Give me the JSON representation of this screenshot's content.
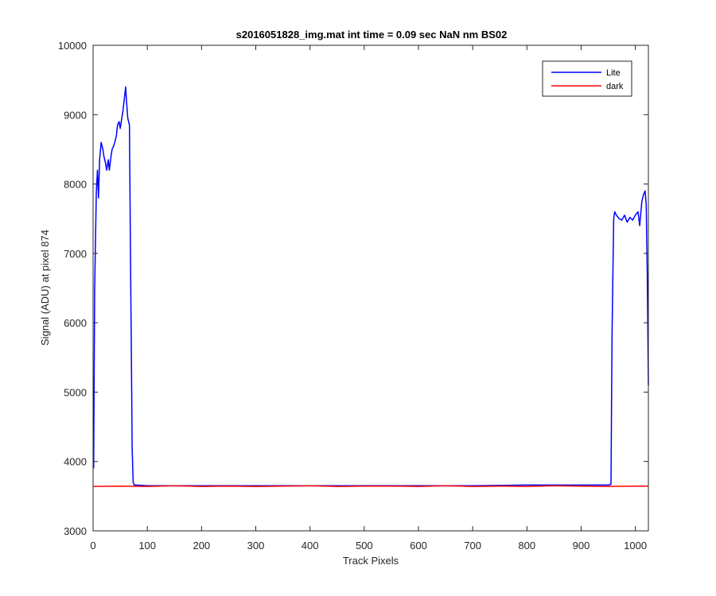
{
  "chart_data": {
    "type": "line",
    "title": "s2016051828_img.mat int time = 0.09 sec  NaN nm BS02",
    "xlabel": "Track Pixels",
    "ylabel": "Signal (ADU) at pixel 874",
    "xlim": [
      0,
      1024
    ],
    "ylim": [
      3000,
      10000
    ],
    "xticks": [
      "0",
      "100",
      "200",
      "300",
      "400",
      "500",
      "600",
      "700",
      "800",
      "900",
      "1000"
    ],
    "yticks": [
      "3000",
      "4000",
      "5000",
      "6000",
      "7000",
      "8000",
      "9000",
      "10000"
    ],
    "grid": false,
    "legend_position": "top-right",
    "series": [
      {
        "name": "Lite",
        "color": "#0000ff",
        "x": [
          1,
          3,
          6,
          8,
          10,
          12,
          15,
          18,
          20,
          23,
          25,
          28,
          30,
          33,
          35,
          38,
          40,
          43,
          45,
          48,
          50,
          53,
          55,
          58,
          60,
          62,
          64,
          67,
          69,
          71,
          72,
          74,
          76,
          80,
          100,
          200,
          300,
          400,
          500,
          600,
          700,
          800,
          900,
          950,
          955,
          957,
          960,
          962,
          965,
          970,
          975,
          980,
          985,
          990,
          995,
          1000,
          1005,
          1008,
          1012,
          1015,
          1018,
          1020,
          1022,
          1024
        ],
        "values": [
          3900,
          6500,
          7900,
          8200,
          7800,
          8350,
          8600,
          8500,
          8400,
          8300,
          8200,
          8350,
          8200,
          8400,
          8500,
          8550,
          8600,
          8700,
          8850,
          8900,
          8800,
          8950,
          9050,
          9250,
          9400,
          9150,
          8950,
          8850,
          7000,
          5200,
          4200,
          3700,
          3660,
          3660,
          3650,
          3650,
          3650,
          3650,
          3650,
          3650,
          3650,
          3660,
          3660,
          3660,
          3670,
          5800,
          7500,
          7600,
          7550,
          7500,
          7480,
          7550,
          7450,
          7520,
          7480,
          7550,
          7600,
          7400,
          7750,
          7850,
          7900,
          7700,
          6700,
          5100
        ]
      },
      {
        "name": "dark",
        "color": "#ff0000",
        "x": [
          1,
          50,
          100,
          150,
          200,
          250,
          300,
          350,
          400,
          450,
          500,
          550,
          600,
          650,
          700,
          750,
          800,
          850,
          900,
          950,
          1000,
          1024
        ],
        "values": [
          3640,
          3645,
          3640,
          3650,
          3640,
          3645,
          3640,
          3645,
          3650,
          3640,
          3645,
          3645,
          3640,
          3650,
          3640,
          3645,
          3640,
          3650,
          3645,
          3640,
          3645,
          3645
        ]
      }
    ]
  }
}
